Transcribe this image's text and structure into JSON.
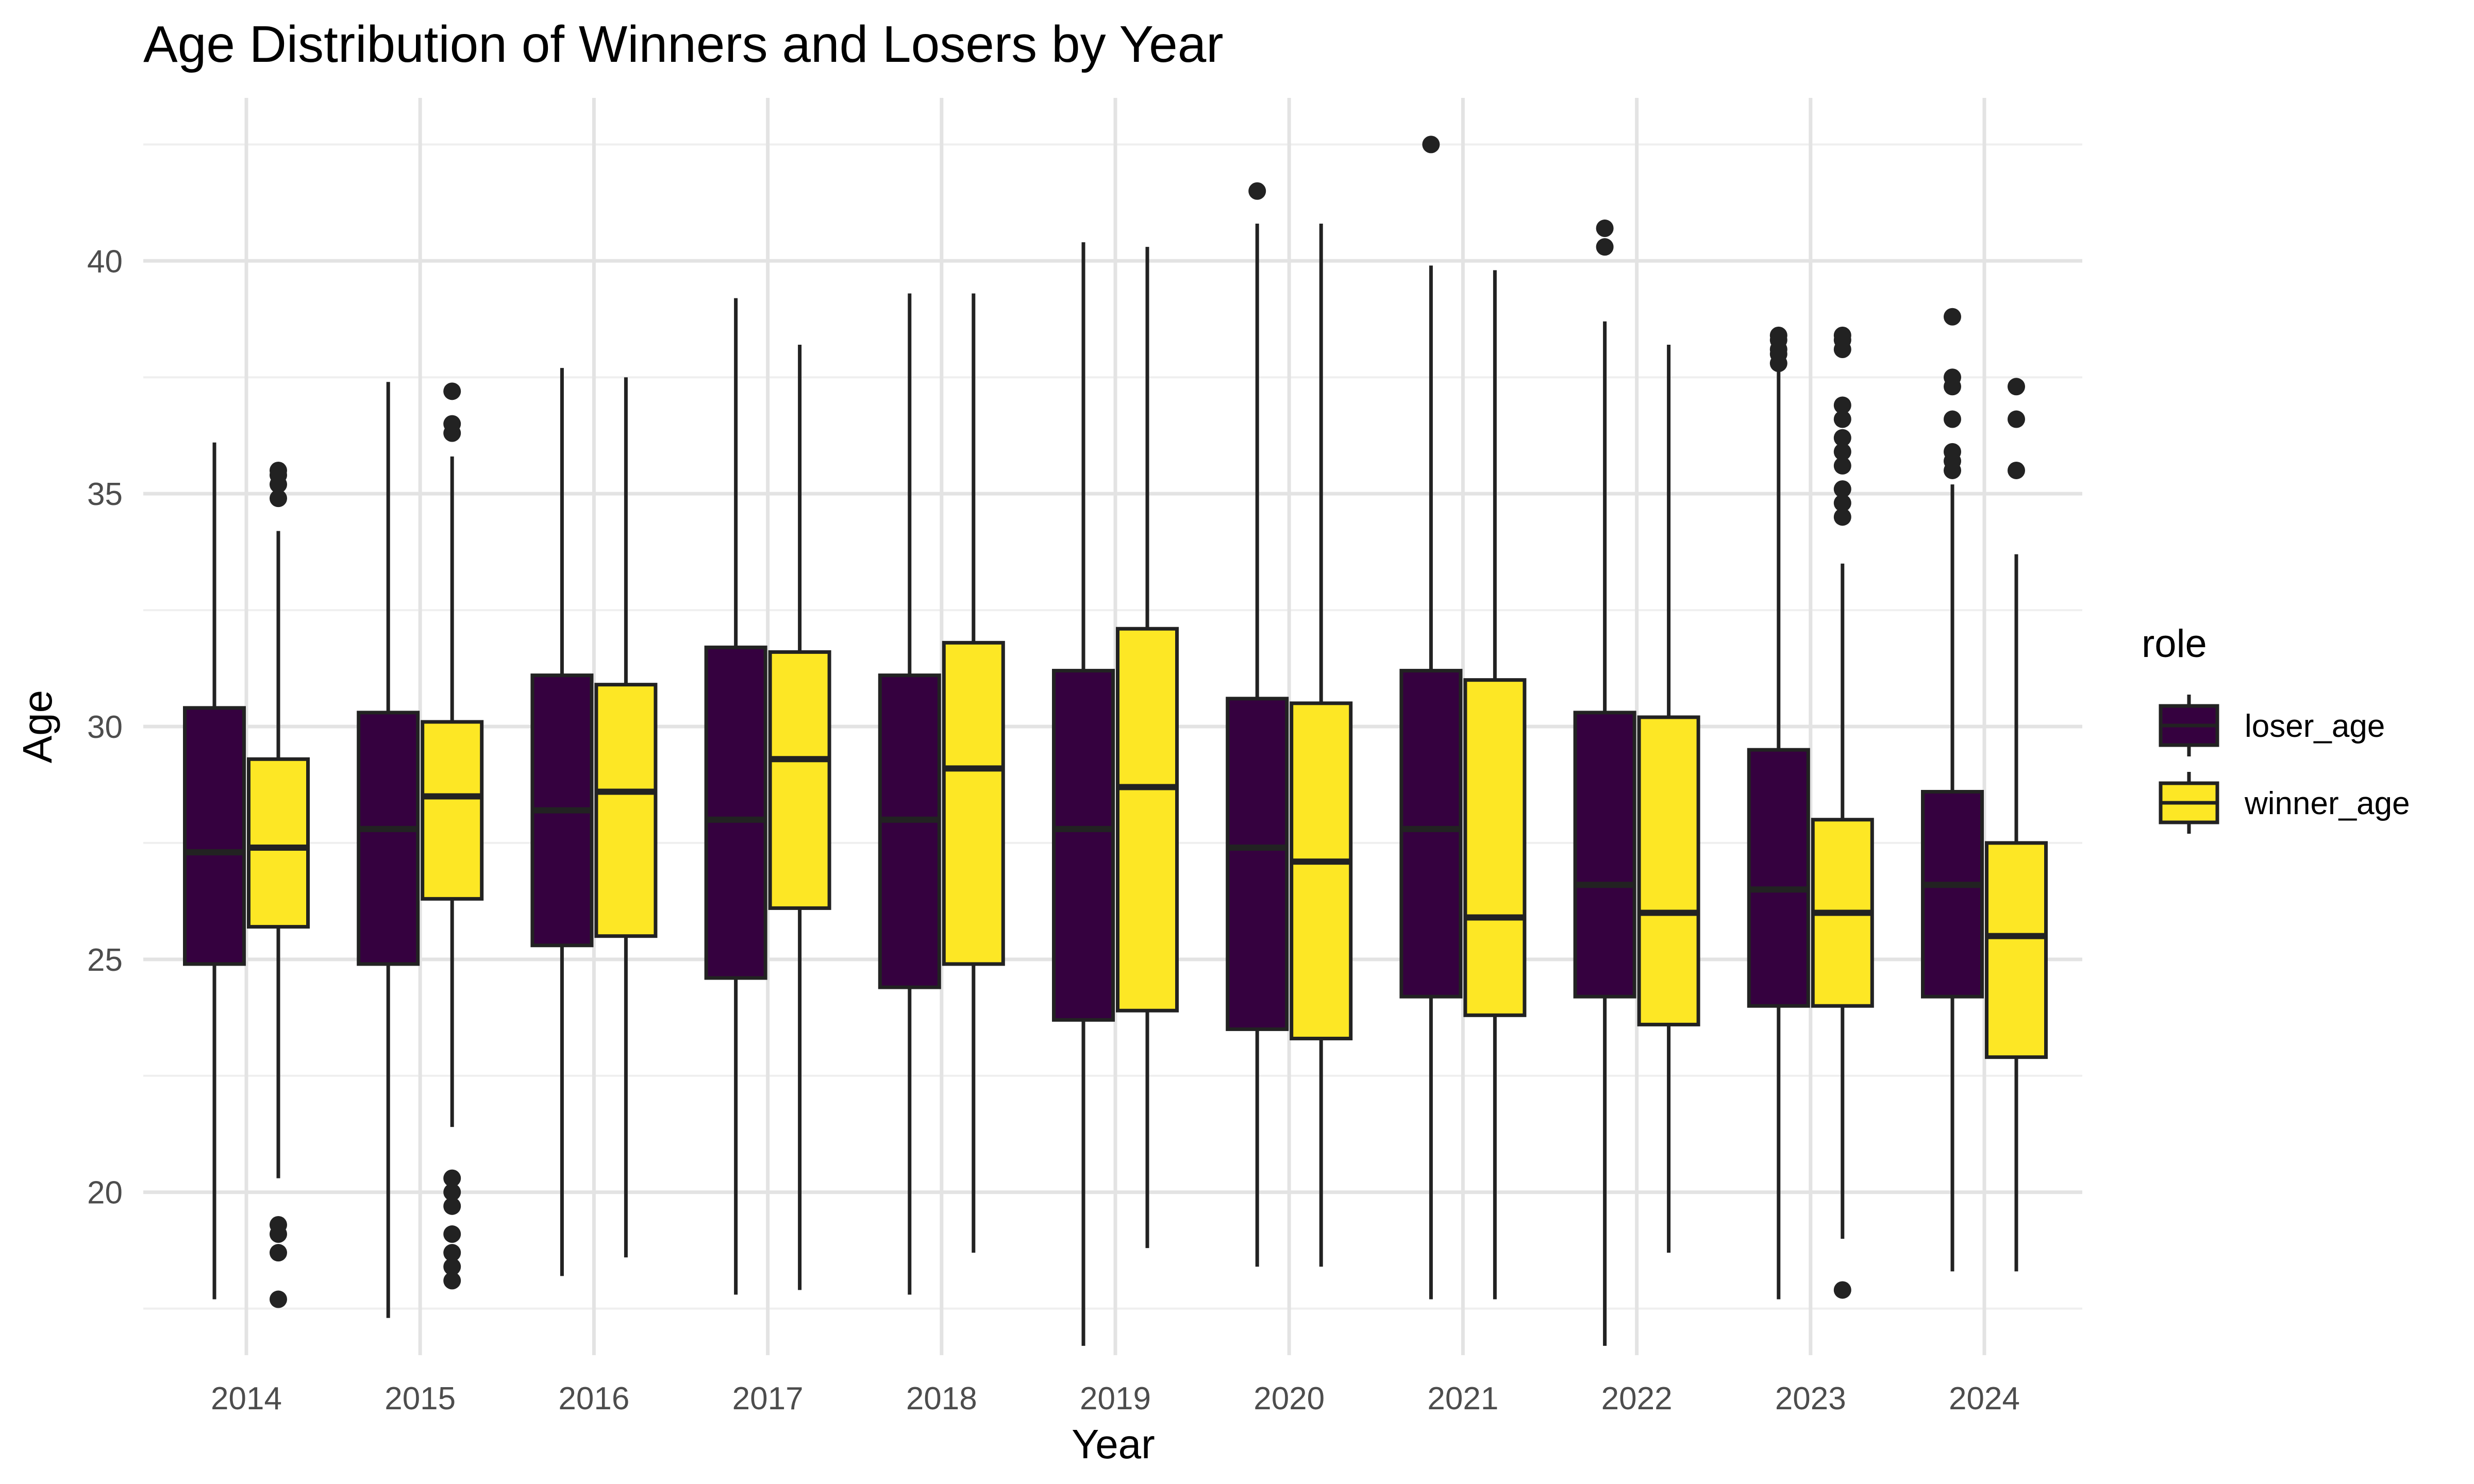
{
  "chart_data": {
    "type": "boxplot",
    "title": "Age Distribution of Winners and Losers by Year",
    "xlabel": "Year",
    "ylabel": "Age",
    "ylim": [
      16.5,
      43.5
    ],
    "yticks": [
      20,
      25,
      30,
      35,
      40
    ],
    "grid": true,
    "legend": {
      "title": "role",
      "position": "right",
      "entries": [
        "loser_age",
        "winner_age"
      ]
    },
    "categories": [
      "2014",
      "2015",
      "2016",
      "2017",
      "2018",
      "2019",
      "2020",
      "2021",
      "2022",
      "2023",
      "2024"
    ],
    "series": [
      {
        "name": "loser_age",
        "color": "#35013F",
        "boxes": [
          {
            "min": 17.7,
            "q1": 24.9,
            "median": 27.3,
            "q3": 30.4,
            "max": 36.1,
            "outliers": []
          },
          {
            "min": 17.3,
            "q1": 24.9,
            "median": 27.8,
            "q3": 30.3,
            "max": 37.4,
            "outliers": []
          },
          {
            "min": 18.2,
            "q1": 25.3,
            "median": 28.2,
            "q3": 31.1,
            "max": 37.7,
            "outliers": []
          },
          {
            "min": 17.8,
            "q1": 24.6,
            "median": 28.0,
            "q3": 31.7,
            "max": 39.2,
            "outliers": []
          },
          {
            "min": 17.8,
            "q1": 24.4,
            "median": 28.0,
            "q3": 31.1,
            "max": 39.3,
            "outliers": []
          },
          {
            "min": 16.7,
            "q1": 23.7,
            "median": 27.8,
            "q3": 31.2,
            "max": 40.4,
            "outliers": []
          },
          {
            "min": 18.4,
            "q1": 23.5,
            "median": 27.4,
            "q3": 30.6,
            "max": 40.8,
            "outliers": [
              41.5
            ]
          },
          {
            "min": 17.7,
            "q1": 24.2,
            "median": 27.8,
            "q3": 31.2,
            "max": 39.9,
            "outliers": [
              42.5
            ]
          },
          {
            "min": 16.7,
            "q1": 24.2,
            "median": 26.6,
            "q3": 30.3,
            "max": 38.7,
            "outliers": [
              40.3,
              40.7
            ]
          },
          {
            "min": 17.7,
            "q1": 24.0,
            "median": 26.5,
            "q3": 29.5,
            "max": 37.8,
            "outliers": [
              37.8,
              38.0,
              38.1,
              38.3,
              38.4
            ]
          },
          {
            "min": 18.3,
            "q1": 24.2,
            "median": 26.6,
            "q3": 28.6,
            "max": 35.2,
            "outliers": [
              35.5,
              35.7,
              35.9,
              36.6,
              37.3,
              37.5,
              38.8
            ]
          }
        ]
      },
      {
        "name": "winner_age",
        "color": "#FDE725",
        "boxes": [
          {
            "min": 20.3,
            "q1": 25.7,
            "median": 27.4,
            "q3": 29.3,
            "max": 34.2,
            "outliers": [
              17.7,
              18.7,
              19.1,
              19.3,
              34.9,
              35.2,
              35.4,
              35.5
            ]
          },
          {
            "min": 21.4,
            "q1": 26.3,
            "median": 28.5,
            "q3": 30.1,
            "max": 35.8,
            "outliers": [
              18.1,
              18.4,
              18.7,
              19.1,
              19.7,
              20.0,
              20.3,
              36.3,
              36.5,
              37.2
            ]
          },
          {
            "min": 18.6,
            "q1": 25.5,
            "median": 28.6,
            "q3": 30.9,
            "max": 37.5,
            "outliers": []
          },
          {
            "min": 17.9,
            "q1": 26.1,
            "median": 29.3,
            "q3": 31.6,
            "max": 38.2,
            "outliers": []
          },
          {
            "min": 18.7,
            "q1": 24.9,
            "median": 29.1,
            "q3": 31.8,
            "max": 39.3,
            "outliers": []
          },
          {
            "min": 18.8,
            "q1": 23.9,
            "median": 28.7,
            "q3": 32.1,
            "max": 40.3,
            "outliers": []
          },
          {
            "min": 18.4,
            "q1": 23.3,
            "median": 27.1,
            "q3": 30.5,
            "max": 40.8,
            "outliers": []
          },
          {
            "min": 17.7,
            "q1": 23.8,
            "median": 25.9,
            "q3": 31.0,
            "max": 39.8,
            "outliers": []
          },
          {
            "min": 18.7,
            "q1": 23.6,
            "median": 26.0,
            "q3": 30.2,
            "max": 38.2,
            "outliers": []
          },
          {
            "min": 19.0,
            "q1": 24.0,
            "median": 26.0,
            "q3": 28.0,
            "max": 33.5,
            "outliers": [
              17.9,
              34.5,
              34.8,
              35.1,
              35.6,
              35.9,
              36.2,
              36.6,
              36.9,
              38.1,
              38.3,
              38.4
            ]
          },
          {
            "min": 18.3,
            "q1": 22.9,
            "median": 25.5,
            "q3": 27.5,
            "max": 33.7,
            "outliers": [
              35.5,
              36.6,
              37.3
            ]
          }
        ]
      }
    ]
  }
}
